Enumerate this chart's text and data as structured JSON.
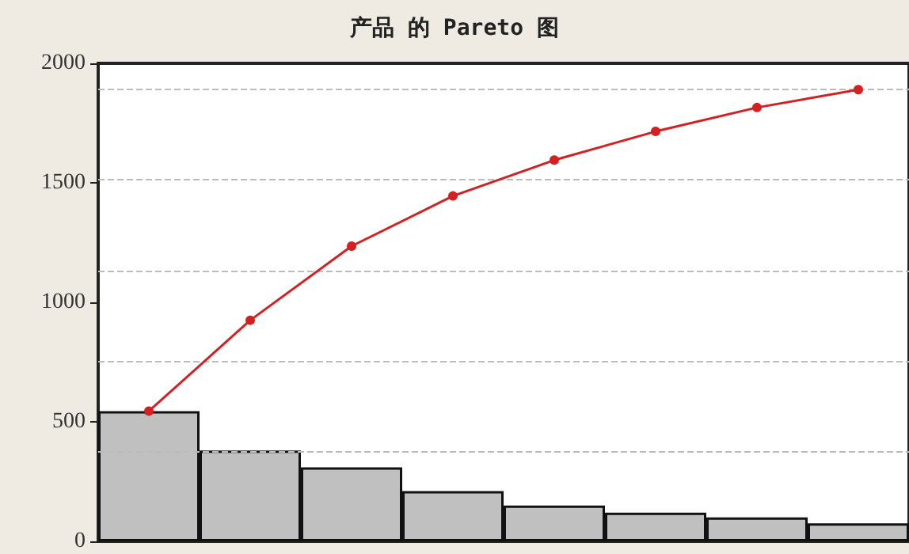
{
  "chart_data": {
    "type": "bar",
    "title": "产品 的 Pareto 图",
    "categories": [
      null,
      null,
      null,
      null,
      null,
      null,
      null,
      null
    ],
    "series": [
      {
        "color": "#c0c0c0",
        "values": [
          545,
          380,
          310,
          210,
          150,
          120,
          100,
          75
        ]
      },
      {
        "type": "line",
        "color": "#d42020",
        "values": [
          545,
          925,
          1235,
          1445,
          1595,
          1715,
          1815,
          1890
        ]
      }
    ],
    "ylim": [
      0,
      2000
    ],
    "yticks": [
      0,
      500,
      1000,
      1500,
      2000
    ],
    "ref_lines": [
      {
        "axis": "y",
        "value": 1890,
        "color": "#bbbbbb",
        "line_style": "dashed"
      },
      {
        "axis": "y",
        "value": 1512,
        "color": "#bbbbbb",
        "line_style": "dashed"
      },
      {
        "axis": "y",
        "value": 1134,
        "color": "#bbbbbb",
        "line_style": "dashed"
      },
      {
        "axis": "y",
        "value": 756,
        "color": "#bbbbbb",
        "line_style": "dashed"
      },
      {
        "axis": "y",
        "value": 378,
        "color": "#bbbbbb",
        "line_style": "dashed"
      }
    ],
    "grid": false,
    "marker": "circle"
  }
}
